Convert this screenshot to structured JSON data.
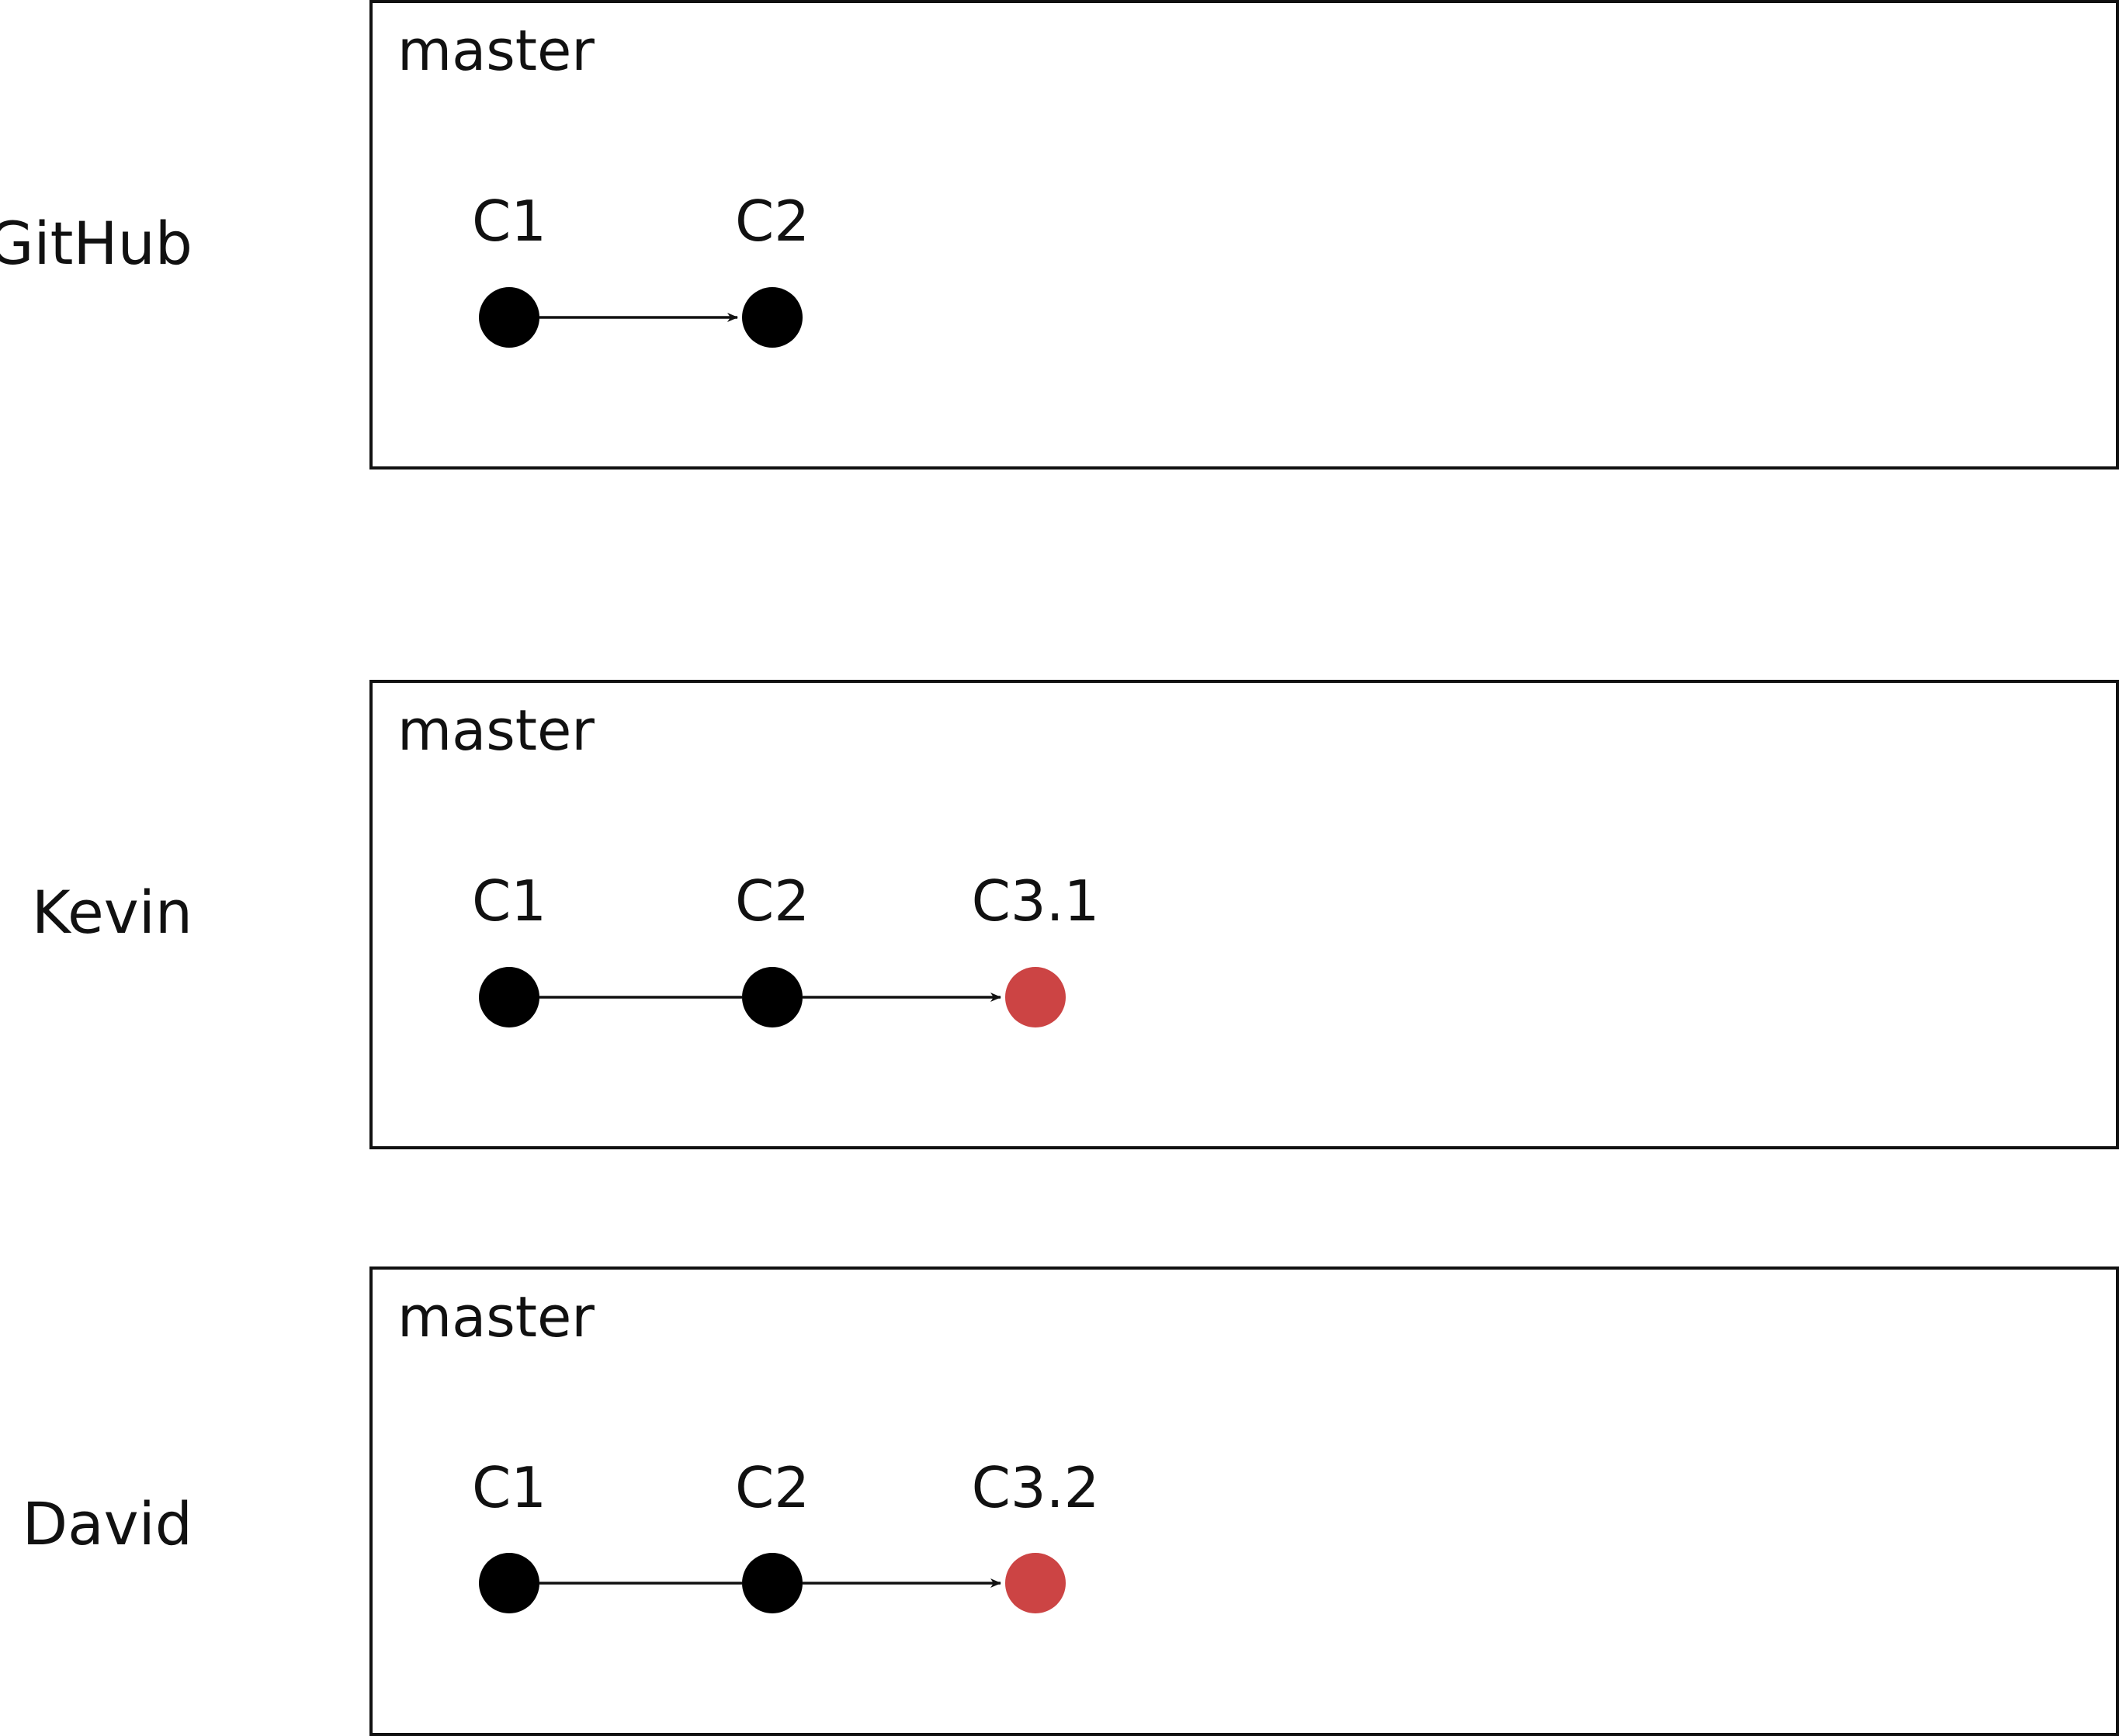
{
  "colors": {
    "line": "#111111",
    "commit_default": "#000000",
    "commit_diverged": "#cc4444"
  },
  "repos": [
    {
      "name": "GitHub",
      "branch": "master",
      "commits": [
        {
          "label": "C1",
          "color": "#000000"
        },
        {
          "label": "C2",
          "color": "#000000"
        }
      ]
    },
    {
      "name": "Kevin",
      "branch": "master",
      "commits": [
        {
          "label": "C1",
          "color": "#000000"
        },
        {
          "label": "C2",
          "color": "#000000"
        },
        {
          "label": "C3.1",
          "color": "#cc4444"
        }
      ]
    },
    {
      "name": "David",
      "branch": "master",
      "commits": [
        {
          "label": "C1",
          "color": "#000000"
        },
        {
          "label": "C2",
          "color": "#000000"
        },
        {
          "label": "C3.2",
          "color": "#cc4444"
        }
      ]
    }
  ]
}
